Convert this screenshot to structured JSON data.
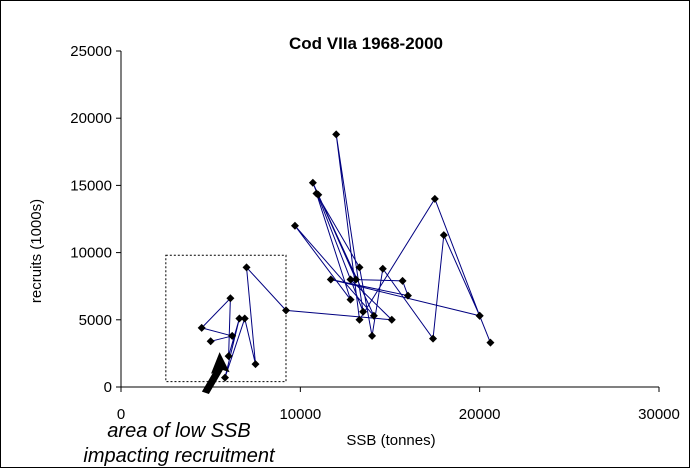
{
  "chart_data": {
    "type": "scatter",
    "title": "Cod VIIa   1968-2000",
    "xlabel": "SSB (tonnes)",
    "ylabel": "recruits (1000s)",
    "xlim": [
      0,
      30000
    ],
    "ylim": [
      0,
      25000
    ],
    "x_ticks": [
      "0",
      "10000",
      "20000",
      "30000"
    ],
    "y_ticks": [
      "0",
      "5000",
      "10000",
      "15000",
      "20000",
      "25000"
    ],
    "grid": false,
    "connected": true,
    "series_color": "#000080",
    "marker": "diamond",
    "points": [
      {
        "x": 20600,
        "y": 3300
      },
      {
        "x": 20000,
        "y": 5300
      },
      {
        "x": 17500,
        "y": 14000
      },
      {
        "x": 13300,
        "y": 5000
      },
      {
        "x": 12000,
        "y": 18800
      },
      {
        "x": 13500,
        "y": 5600
      },
      {
        "x": 10700,
        "y": 15200
      },
      {
        "x": 13100,
        "y": 8000
      },
      {
        "x": 11000,
        "y": 14300
      },
      {
        "x": 14100,
        "y": 5300
      },
      {
        "x": 9700,
        "y": 12000
      },
      {
        "x": 12800,
        "y": 6500
      },
      {
        "x": 10900,
        "y": 14400
      },
      {
        "x": 13300,
        "y": 8900
      },
      {
        "x": 14000,
        "y": 3800
      },
      {
        "x": 14600,
        "y": 8800
      },
      {
        "x": 17400,
        "y": 3600
      },
      {
        "x": 18000,
        "y": 11300
      },
      {
        "x": 20000,
        "y": 5300
      },
      {
        "x": 11700,
        "y": 8000
      },
      {
        "x": 16000,
        "y": 6800
      },
      {
        "x": 15700,
        "y": 7900
      },
      {
        "x": 12800,
        "y": 8000
      },
      {
        "x": 15100,
        "y": 5000
      },
      {
        "x": 9200,
        "y": 5700
      },
      {
        "x": 7000,
        "y": 8900
      },
      {
        "x": 7500,
        "y": 1700
      },
      {
        "x": 6900,
        "y": 5100
      },
      {
        "x": 5800,
        "y": 700
      },
      {
        "x": 6600,
        "y": 5100
      },
      {
        "x": 6000,
        "y": 2300
      },
      {
        "x": 6100,
        "y": 6600
      },
      {
        "x": 4500,
        "y": 4400
      },
      {
        "x": 6200,
        "y": 3800
      },
      {
        "x": 5000,
        "y": 3400
      }
    ],
    "highlight_box": {
      "x": [
        2500,
        9200
      ],
      "y": [
        400,
        9800
      ]
    },
    "annotation": {
      "line1": "area of low SSB",
      "line2": "impacting recruitment",
      "target": {
        "x": 5500,
        "y": 2500
      }
    }
  }
}
